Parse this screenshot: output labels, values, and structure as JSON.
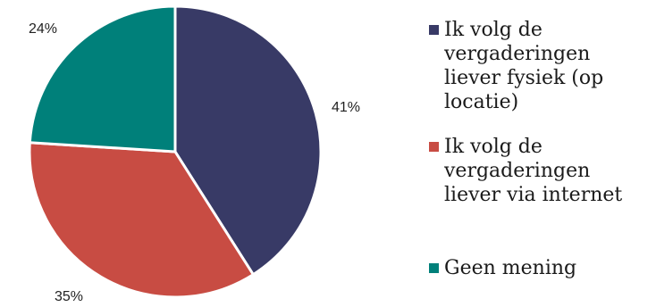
{
  "chart_data": {
    "type": "pie",
    "title": "",
    "categories": [
      "Ik volg de vergaderingen liever fysiek (op locatie)",
      "Ik volg de vergaderingen liever via internet",
      "Geen mening"
    ],
    "values": [
      41,
      35,
      24
    ],
    "labels": [
      "41%",
      "35%",
      "24%"
    ],
    "colors": [
      "#383a66",
      "#c84c43",
      "#00807a"
    ],
    "legend_position": "right",
    "legend_lines": [
      [
        "Ik volg de",
        "vergaderingen",
        "liever fysiek (op",
        "locatie)"
      ],
      [
        "Ik volg de",
        "vergaderingen",
        "liever via internet"
      ],
      [
        "Geen mening"
      ]
    ]
  }
}
